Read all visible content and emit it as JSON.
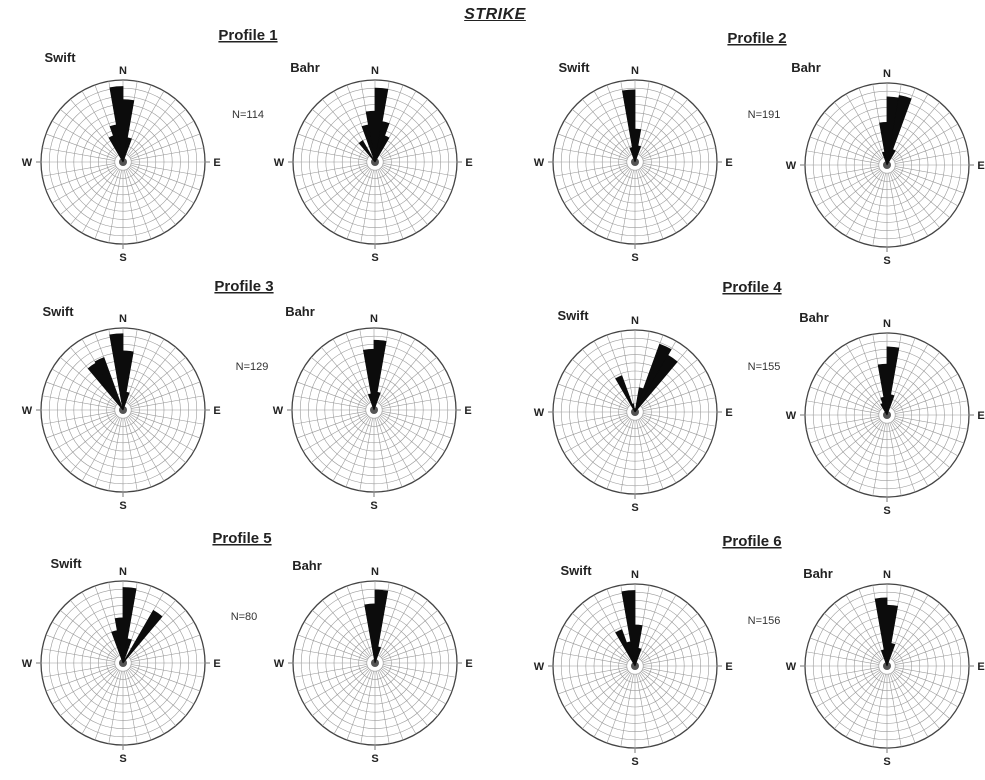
{
  "title": "STRIKE",
  "compass": {
    "n": "N",
    "e": "E",
    "s": "S",
    "w": "W"
  },
  "chart_data": [
    {
      "type": "rose",
      "profile": "Profile 1",
      "n_label": "N=114",
      "diagrams": [
        {
          "name": "Swift",
          "petals": [
            [
              -10,
              0,
              0.92
            ],
            [
              0,
              10,
              0.76
            ],
            [
              10,
              20,
              0.3
            ],
            [
              -20,
              -10,
              0.46
            ],
            [
              -30,
              -20,
              0.34
            ]
          ]
        },
        {
          "name": "Bahr",
          "petals": [
            [
              0,
              10,
              0.9
            ],
            [
              -10,
              0,
              0.62
            ],
            [
              10,
              20,
              0.5
            ],
            [
              20,
              30,
              0.34
            ],
            [
              -20,
              -10,
              0.46
            ],
            [
              -40,
              -30,
              0.3
            ]
          ]
        }
      ]
    },
    {
      "type": "rose",
      "profile": "Profile 2",
      "n_label": "N=191",
      "diagrams": [
        {
          "name": "Swift",
          "petals": [
            [
              -10,
              0,
              0.88
            ],
            [
              0,
              10,
              0.4
            ],
            [
              10,
              20,
              0.2
            ],
            [
              -20,
              -10,
              0.18
            ]
          ]
        },
        {
          "name": "Bahr",
          "petals": [
            [
              0,
              10,
              0.83
            ],
            [
              10,
              20,
              0.86
            ],
            [
              20,
              30,
              0.2
            ],
            [
              -10,
              0,
              0.52
            ],
            [
              -20,
              -10,
              0.16
            ]
          ]
        }
      ]
    },
    {
      "type": "rose",
      "profile": "Profile 3",
      "n_label": "N=129",
      "diagrams": [
        {
          "name": "Swift",
          "petals": [
            [
              -10,
              0,
              0.93
            ],
            [
              0,
              10,
              0.72
            ],
            [
              10,
              20,
              0.22
            ],
            [
              -30,
              -20,
              0.68
            ],
            [
              -40,
              -30,
              0.66
            ]
          ]
        },
        {
          "name": "Bahr",
          "petals": [
            [
              0,
              10,
              0.85
            ],
            [
              -10,
              0,
              0.74
            ],
            [
              10,
              20,
              0.22
            ],
            [
              -20,
              -10,
              0.2
            ]
          ]
        }
      ]
    },
    {
      "type": "rose",
      "profile": "Profile 4",
      "n_label": "N=155",
      "diagrams": [
        {
          "name": "Swift",
          "petals": [
            [
              20,
              30,
              0.88
            ],
            [
              30,
              40,
              0.8
            ],
            [
              10,
              20,
              0.3
            ],
            [
              -30,
              -20,
              0.47
            ],
            [
              -20,
              -10,
              0.1
            ]
          ]
        },
        {
          "name": "Bahr",
          "petals": [
            [
              0,
              10,
              0.83
            ],
            [
              -10,
              0,
              0.62
            ],
            [
              10,
              20,
              0.25
            ],
            [
              -20,
              -10,
              0.22
            ],
            [
              -30,
              -20,
              0.15
            ]
          ]
        }
      ]
    },
    {
      "type": "rose",
      "profile": "Profile 5",
      "n_label": "N=80",
      "diagrams": [
        {
          "name": "Swift",
          "petals": [
            [
              0,
              10,
              0.92
            ],
            [
              -10,
              0,
              0.55
            ],
            [
              30,
              40,
              0.74
            ],
            [
              -20,
              -10,
              0.4
            ],
            [
              10,
              20,
              0.3
            ]
          ]
        },
        {
          "name": "Bahr",
          "petals": [
            [
              0,
              10,
              0.89
            ],
            [
              -10,
              0,
              0.72
            ],
            [
              10,
              20,
              0.2
            ]
          ]
        }
      ]
    },
    {
      "type": "rose",
      "profile": "Profile 6",
      "n_label": "N=156",
      "diagrams": [
        {
          "name": "Swift",
          "petals": [
            [
              -10,
              0,
              0.92
            ],
            [
              0,
              10,
              0.5
            ],
            [
              10,
              20,
              0.22
            ],
            [
              -30,
              -20,
              0.47
            ],
            [
              -20,
              -10,
              0.3
            ]
          ]
        },
        {
          "name": "Bahr",
          "petals": [
            [
              -10,
              0,
              0.83
            ],
            [
              0,
              10,
              0.74
            ],
            [
              10,
              20,
              0.28
            ],
            [
              -20,
              -10,
              0.2
            ]
          ]
        }
      ]
    }
  ]
}
